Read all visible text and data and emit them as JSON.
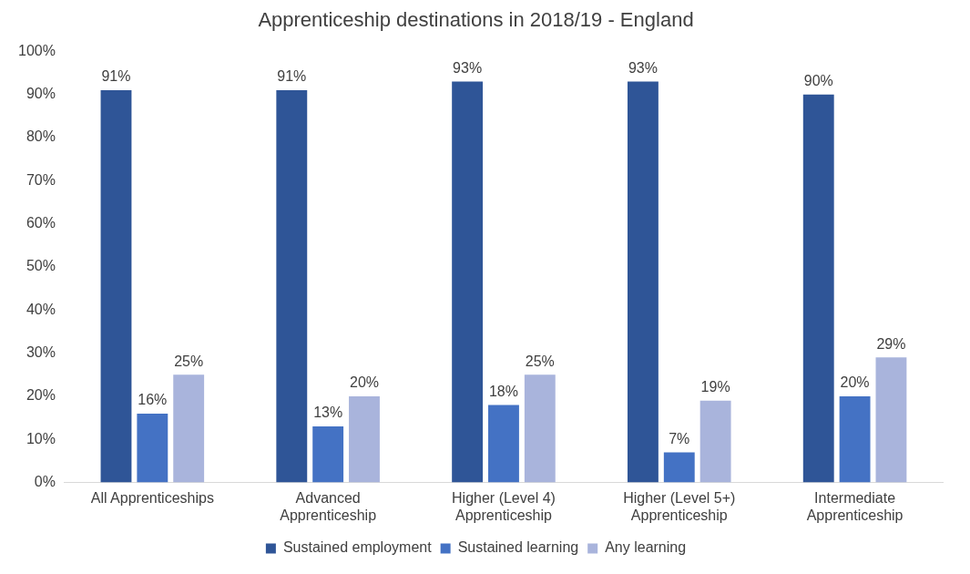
{
  "chart_data": {
    "type": "bar",
    "title": "Apprenticeship destinations in 2018/19 - England",
    "categories": [
      "All Apprenticeships",
      "Advanced Apprenticeship",
      "Higher (Level 4) Apprenticeship",
      "Higher (Level 5+) Apprenticeship",
      "Intermediate Apprenticeship"
    ],
    "series": [
      {
        "name": "Sustained employment",
        "color": "#2f5597",
        "values": [
          91,
          91,
          93,
          93,
          90
        ],
        "value_labels": [
          "91%",
          "91%",
          "93%",
          "93%",
          "90%"
        ]
      },
      {
        "name": "Sustained learning",
        "color": "#4472c4",
        "values": [
          16,
          13,
          18,
          7,
          20
        ],
        "value_labels": [
          "16%",
          "13%",
          "18%",
          "7%",
          "20%"
        ]
      },
      {
        "name": "Any learning",
        "color": "#a9b4dc",
        "values": [
          25,
          20,
          25,
          19,
          29
        ],
        "value_labels": [
          "25%",
          "20%",
          "25%",
          "19%",
          "29%"
        ]
      }
    ],
    "ylim": [
      0,
      100
    ],
    "yticks": [
      {
        "value": 0,
        "label": "0%"
      },
      {
        "value": 10,
        "label": "10%"
      },
      {
        "value": 20,
        "label": "20%"
      },
      {
        "value": 30,
        "label": "30%"
      },
      {
        "value": 40,
        "label": "40%"
      },
      {
        "value": 50,
        "label": "50%"
      },
      {
        "value": 60,
        "label": "60%"
      },
      {
        "value": 70,
        "label": "70%"
      },
      {
        "value": 80,
        "label": "80%"
      },
      {
        "value": 90,
        "label": "90%"
      },
      {
        "value": 100,
        "label": "100%"
      }
    ],
    "grid": false,
    "legend": "bottom"
  }
}
